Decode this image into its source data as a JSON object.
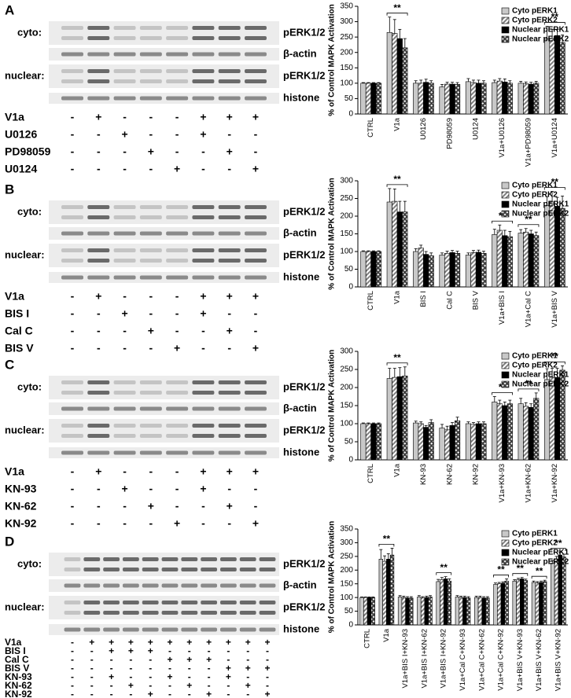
{
  "panels": [
    {
      "letter": "A",
      "cyto": "cyto:",
      "nuclear": "nuclear:",
      "bands": [
        "pERK1/2",
        "β-actin",
        "pERK1/2",
        "histone"
      ],
      "treatments": [
        {
          "name": "V1a",
          "signs": [
            "-",
            "+",
            "-",
            "-",
            "-",
            "+",
            "+",
            "+"
          ]
        },
        {
          "name": "U0126",
          "signs": [
            "-",
            "-",
            "+",
            "-",
            "-",
            "+",
            "-",
            "-"
          ]
        },
        {
          "name": "PD98059",
          "signs": [
            "-",
            "-",
            "-",
            "+",
            "-",
            "-",
            "+",
            "-"
          ]
        },
        {
          "name": "U0124",
          "signs": [
            "-",
            "-",
            "-",
            "-",
            "+",
            "-",
            "-",
            "+"
          ]
        }
      ]
    },
    {
      "letter": "B",
      "cyto": "cyto:",
      "nuclear": "nuclear:",
      "bands": [
        "pERK1/2",
        "β-actin",
        "pERK1/2",
        "histone"
      ],
      "treatments": [
        {
          "name": "V1a",
          "signs": [
            "-",
            "+",
            "-",
            "-",
            "-",
            "+",
            "+",
            "+"
          ]
        },
        {
          "name": "BIS I",
          "signs": [
            "-",
            "-",
            "+",
            "-",
            "-",
            "+",
            "-",
            "-"
          ]
        },
        {
          "name": "Cal C",
          "signs": [
            "-",
            "-",
            "-",
            "+",
            "-",
            "-",
            "+",
            "-"
          ]
        },
        {
          "name": "BIS V",
          "signs": [
            "-",
            "-",
            "-",
            "-",
            "+",
            "-",
            "-",
            "+"
          ]
        }
      ]
    },
    {
      "letter": "C",
      "cyto": "cyto:",
      "nuclear": "nuclear:",
      "bands": [
        "pERK1/2",
        "β-actin",
        "pERK1/2",
        "histone"
      ],
      "treatments": [
        {
          "name": "V1a",
          "signs": [
            "-",
            "+",
            "-",
            "-",
            "-",
            "+",
            "+",
            "+"
          ]
        },
        {
          "name": "KN-93",
          "signs": [
            "-",
            "-",
            "+",
            "-",
            "-",
            "+",
            "-",
            "-"
          ]
        },
        {
          "name": "KN-62",
          "signs": [
            "-",
            "-",
            "-",
            "+",
            "-",
            "-",
            "+",
            "-"
          ]
        },
        {
          "name": "KN-92",
          "signs": [
            "-",
            "-",
            "-",
            "-",
            "+",
            "-",
            "-",
            "+"
          ]
        }
      ]
    },
    {
      "letter": "D",
      "cyto": "cyto:",
      "nuclear": "nuclear:",
      "bands": [
        "pERK1/2",
        "β-actin",
        "pERK1/2",
        "histone"
      ],
      "treatments": [
        {
          "name": "V1a",
          "signs": [
            "-",
            "+",
            "+",
            "+",
            "+",
            "+",
            "+",
            "+",
            "+",
            "+",
            "+"
          ]
        },
        {
          "name": "BIS I",
          "signs": [
            "-",
            "-",
            "+",
            "+",
            "+",
            "-",
            "-",
            "-",
            "-",
            "-",
            "-"
          ]
        },
        {
          "name": "Cal C",
          "signs": [
            "-",
            "-",
            "-",
            "-",
            "-",
            "+",
            "+",
            "+",
            "-",
            "-",
            "-"
          ]
        },
        {
          "name": "BIS V",
          "signs": [
            "-",
            "-",
            "-",
            "-",
            "-",
            "-",
            "-",
            "-",
            "+",
            "+",
            "+"
          ]
        },
        {
          "name": "KN-93",
          "signs": [
            "-",
            "-",
            "+",
            "-",
            "-",
            "+",
            "-",
            "-",
            "+",
            "-",
            "-"
          ]
        },
        {
          "name": "KN-62",
          "signs": [
            "-",
            "-",
            "-",
            "+",
            "-",
            "-",
            "+",
            "-",
            "-",
            "+",
            "-"
          ]
        },
        {
          "name": "KN-92",
          "signs": [
            "-",
            "-",
            "-",
            "-",
            "+",
            "-",
            "-",
            "+",
            "-",
            "-",
            "+"
          ]
        }
      ]
    }
  ],
  "chart_data": [
    {
      "type": "bar",
      "ylabel": "% of Control MAPK Activation",
      "legend": "upper right",
      "ylim": [
        0,
        350
      ],
      "yticks": [
        0,
        50,
        100,
        150,
        200,
        250,
        300,
        350
      ],
      "categories": [
        "CTRL",
        "V1a",
        "U0126",
        "PD98059",
        "U0124",
        "V1a+U0126",
        "V1a+PD98059",
        "V1a+U0124"
      ],
      "significance": [
        null,
        "**",
        null,
        null,
        null,
        null,
        null,
        "**"
      ],
      "series": [
        {
          "name": "Cyto pERK1",
          "color": "#c8c8c8",
          "values": [
            100,
            265,
            100,
            88,
            105,
            102,
            100,
            245
          ],
          "errors": [
            2,
            50,
            8,
            8,
            10,
            8,
            6,
            40
          ]
        },
        {
          "name": "Cyto pERK2",
          "color": "#808080",
          "pattern": "diagonal",
          "values": [
            100,
            262,
            100,
            97,
            102,
            107,
            98,
            245
          ],
          "errors": [
            2,
            45,
            10,
            6,
            8,
            8,
            6,
            30
          ]
        },
        {
          "name": "Nuclear pERK1",
          "color": "#000000",
          "values": [
            100,
            245,
            103,
            97,
            100,
            104,
            97,
            255
          ],
          "errors": [
            2,
            30,
            10,
            6,
            10,
            10,
            6,
            20
          ]
        },
        {
          "name": "Nuclear pERK2",
          "color": "#404040",
          "pattern": "crosshatch",
          "values": [
            100,
            215,
            100,
            96,
            100,
            100,
            100,
            232
          ],
          "errors": [
            2,
            30,
            8,
            6,
            8,
            8,
            6,
            25
          ]
        }
      ]
    },
    {
      "type": "bar",
      "ylabel": "% of Control MAPK Activation",
      "legend": "upper right",
      "ylim": [
        0,
        300
      ],
      "yticks": [
        0,
        50,
        100,
        150,
        200,
        250,
        300
      ],
      "categories": [
        "CTRL",
        "V1a",
        "BIS I",
        "Cal C",
        "BIS V",
        "V1a+BIS I",
        "V1a+Cal C",
        "V1a+BIS V"
      ],
      "significance": [
        null,
        "**",
        null,
        null,
        null,
        "**",
        "**",
        "**"
      ],
      "series": [
        {
          "name": "Cyto pERK1",
          "color": "#c8c8c8",
          "values": [
            100,
            240,
            100,
            90,
            90,
            148,
            152,
            230
          ],
          "errors": [
            2,
            38,
            8,
            6,
            6,
            15,
            10,
            25
          ]
        },
        {
          "name": "Cyto pERK2",
          "color": "#808080",
          "pattern": "diagonal",
          "values": [
            100,
            242,
            110,
            95,
            97,
            160,
            155,
            240
          ],
          "errors": [
            2,
            35,
            8,
            6,
            6,
            15,
            10,
            30
          ]
        },
        {
          "name": "Nuclear pERK1",
          "color": "#000000",
          "values": [
            100,
            212,
            92,
            97,
            98,
            145,
            150,
            228
          ],
          "errors": [
            2,
            30,
            8,
            6,
            6,
            15,
            10,
            25
          ]
        },
        {
          "name": "Nuclear pERK2",
          "color": "#404040",
          "pattern": "crosshatch",
          "values": [
            100,
            212,
            88,
            95,
            95,
            142,
            145,
            222
          ],
          "errors": [
            2,
            30,
            8,
            6,
            6,
            15,
            10,
            35
          ]
        }
      ]
    },
    {
      "type": "bar",
      "ylabel": "% of Control MAPK Activation",
      "legend": "upper right",
      "ylim": [
        0,
        300
      ],
      "yticks": [
        0,
        50,
        100,
        150,
        200,
        250,
        300
      ],
      "categories": [
        "CTRL",
        "V1a",
        "KN-93",
        "KN-62",
        "KN-92",
        "V1a+KN-93",
        "V1a+KN-62",
        "V1a+KN-92"
      ],
      "significance": [
        null,
        "**",
        null,
        null,
        null,
        "**",
        "**",
        "**"
      ],
      "series": [
        {
          "name": "Cyto pERK1",
          "color": "#c8c8c8",
          "values": [
            100,
            225,
            102,
            88,
            100,
            160,
            155,
            222
          ],
          "errors": [
            2,
            28,
            5,
            10,
            5,
            15,
            15,
            30
          ]
        },
        {
          "name": "Cyto pERK2",
          "color": "#808080",
          "pattern": "diagonal",
          "values": [
            100,
            228,
            100,
            83,
            98,
            155,
            148,
            228
          ],
          "errors": [
            2,
            25,
            5,
            10,
            5,
            10,
            10,
            25
          ]
        },
        {
          "name": "Nuclear pERK1",
          "color": "#000000",
          "values": [
            100,
            230,
            90,
            95,
            100,
            150,
            145,
            228
          ],
          "errors": [
            2,
            25,
            5,
            8,
            5,
            10,
            10,
            25
          ]
        },
        {
          "name": "Nuclear pERK2",
          "color": "#404040",
          "pattern": "crosshatch",
          "values": [
            100,
            232,
            103,
            108,
            100,
            155,
            170,
            248
          ],
          "errors": [
            2,
            25,
            8,
            10,
            5,
            10,
            15,
            12
          ]
        }
      ]
    },
    {
      "type": "bar",
      "ylabel": "% of Control MAPK Activation",
      "legend": "upper right",
      "ylim": [
        0,
        350
      ],
      "yticks": [
        0,
        50,
        100,
        150,
        200,
        250,
        300,
        350
      ],
      "categories": [
        "CTRL",
        "V1a",
        "V1a+BIS I+KN-93",
        "V1a+BIS I+KN-62",
        "V1a+BIS I+KN-92",
        "V1a+Cal C+KN-93",
        "V1a+Cal C+KN-62",
        "V1a+Cal C+KN-92",
        "V1a+BIS V+KN-93",
        "V1a+BIS V+KN-62",
        "V1a+BIS V+KN-92"
      ],
      "significance": [
        null,
        "**",
        null,
        null,
        "**",
        null,
        null,
        "**",
        "**",
        "**",
        "**"
      ],
      "series": [
        {
          "name": "Cyto pERK1",
          "color": "#c8c8c8",
          "values": [
            100,
            240,
            102,
            102,
            158,
            102,
            100,
            148,
            160,
            155,
            225
          ],
          "errors": [
            2,
            35,
            5,
            5,
            8,
            5,
            5,
            5,
            5,
            5,
            10
          ]
        },
        {
          "name": "Cyto pERK2",
          "color": "#808080",
          "pattern": "diagonal",
          "values": [
            100,
            232,
            100,
            98,
            165,
            100,
            100,
            150,
            165,
            153,
            240
          ],
          "errors": [
            2,
            20,
            5,
            5,
            8,
            5,
            5,
            5,
            5,
            5,
            10
          ]
        },
        {
          "name": "Nuclear pERK1",
          "color": "#000000",
          "values": [
            100,
            240,
            98,
            100,
            168,
            100,
            98,
            152,
            168,
            155,
            255
          ],
          "errors": [
            2,
            20,
            5,
            5,
            8,
            5,
            5,
            5,
            5,
            5,
            10
          ]
        },
        {
          "name": "Nuclear pERK2",
          "color": "#404040",
          "pattern": "crosshatch",
          "values": [
            100,
            255,
            98,
            102,
            160,
            98,
            98,
            160,
            162,
            158,
            248
          ],
          "errors": [
            2,
            25,
            5,
            5,
            8,
            5,
            5,
            8,
            5,
            5,
            10
          ]
        }
      ]
    }
  ]
}
